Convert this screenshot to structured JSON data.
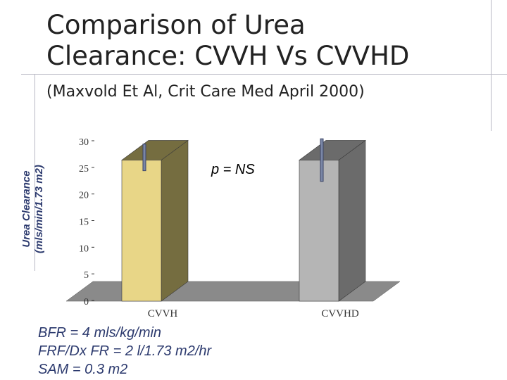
{
  "slide": {
    "title_line1": "Comparison of Urea",
    "title_line2": "Clearance: CVVH Vs CVVHD",
    "subtitle": "(Maxvold Et Al, Crit Care Med April 2000)"
  },
  "chart_data": {
    "type": "bar",
    "categories": [
      "CVVH",
      "CVVHD"
    ],
    "values": [
      26.5,
      26.5
    ],
    "error_low": [
      24.5,
      22.5
    ],
    "error_high": [
      29.5,
      30.5
    ],
    "ylabel_line1": "Urea Clearance",
    "ylabel_line2": "(mls/min/1.73 m2)",
    "ylim": [
      0,
      30
    ],
    "yticks": [
      "0",
      "5",
      "10",
      "15",
      "20",
      "25",
      "30"
    ],
    "annotation": "p = NS",
    "colors": {
      "bar1_front": "#e8d687",
      "bar1_side": "#756d40",
      "bar2_front": "#b5b5b5",
      "bar2_side": "#6b6b6b",
      "floor": "#8a8a8a",
      "wall": "#ffffff",
      "error_bar": "#7a86a6"
    }
  },
  "notes": [
    "BFR = 4 mls/kg/min",
    "FRF/Dx FR = 2 l/1.73 m2/hr",
    "SAM = 0.3 m2"
  ]
}
